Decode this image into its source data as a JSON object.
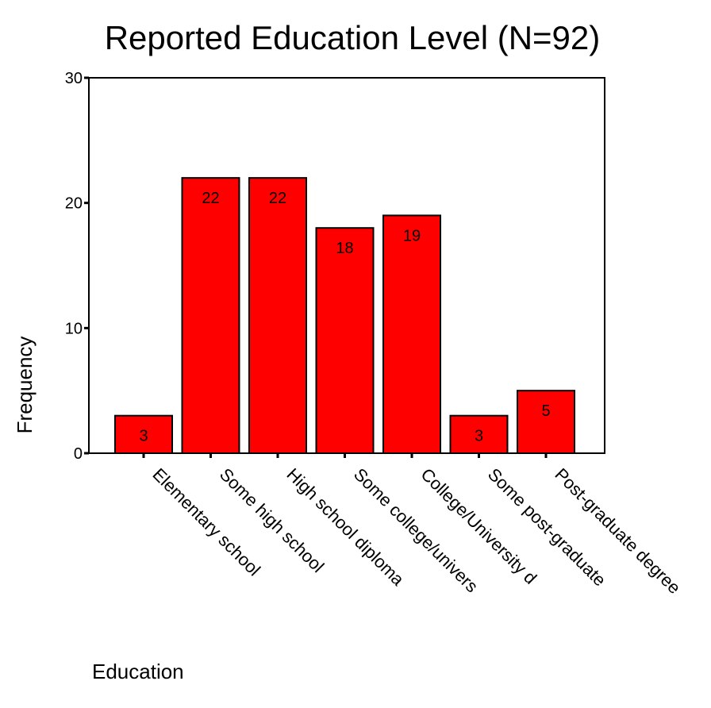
{
  "chart_data": {
    "type": "bar",
    "title": "Reported Education Level (N=92)",
    "xlabel": "Education",
    "ylabel": "Frequency",
    "categories": [
      "Elementary school",
      "Some high school",
      "High school diploma",
      "Some college/univers",
      "College/University d",
      "Some post-graduate",
      "Post-graduate degree"
    ],
    "values": [
      3,
      22,
      22,
      18,
      19,
      3,
      5
    ],
    "data_labels": [
      "3",
      "22",
      "22",
      "18",
      "19",
      "3",
      "5"
    ],
    "yticks": [
      "0",
      "10",
      "20",
      "30"
    ],
    "ylim": [
      0,
      30
    ],
    "bar_color": "#ff0000",
    "grid": false,
    "legend": "none"
  }
}
